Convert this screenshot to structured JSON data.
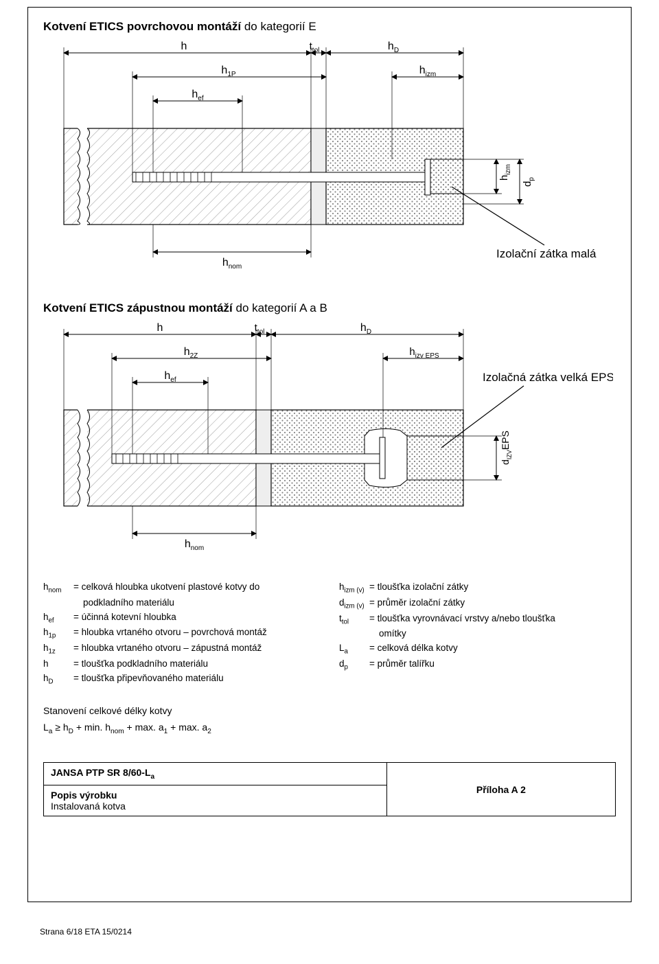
{
  "section1": {
    "title_bold": "Kotvení ETICS povrchovou montáží",
    "title_rest": " do kategorií E",
    "label_small": "Izolační zátka malá",
    "dims": {
      "h": "h",
      "ttol": "t",
      "ttol_sub": "tol",
      "hD": "h",
      "hD_sub": "D",
      "h1P": "h",
      "h1P_sub": "1P",
      "hizm": "h",
      "hizm_sub": "izm",
      "hef": "h",
      "hef_sub": "ef",
      "hnom": "h",
      "hnom_sub": "nom",
      "hizm_v": "h",
      "hizm_v_sub": "izm",
      "dp": "d",
      "dp_sub": "p"
    }
  },
  "section2": {
    "title_bold": "Kotvení ETICS zápustnou montáží",
    "title_rest": " do kategorií A a B",
    "label_big": "Izolačná zátka velká EPS",
    "dims": {
      "h": "h",
      "ttol": "t",
      "ttol_sub": "tol",
      "hD": "h",
      "hD_sub": "D",
      "h2Z": "h",
      "h2Z_sub": "2Z",
      "hizvEPS": "h",
      "hizvEPS_sub": "izv EPS",
      "hef": "h",
      "hef_sub": "ef",
      "hnom": "h",
      "hnom_sub": "nom",
      "dizvEPS": "d",
      "dizvEPS_sub": "IZV",
      "dizvEPS_sup": "EPS"
    }
  },
  "defs_left": [
    {
      "sym": "h",
      "sub": "nom",
      "txt": "= celková hloubka ukotvení plastové kotvy do",
      "cont": "podkladního materiálu"
    },
    {
      "sym": "h",
      "sub": "ef",
      "txt": "= účinná kotevní hloubka"
    },
    {
      "sym": "h",
      "sub": "1p",
      "txt": "= hloubka vrtaného otvoru – povrchová montáž"
    },
    {
      "sym": "h",
      "sub": "1z",
      "txt": "= hloubka vrtaného otvoru – zápustná montáž"
    },
    {
      "sym": "h",
      "sub": "",
      "txt": "= tloušťka podkladního materiálu"
    },
    {
      "sym": "h",
      "sub": "D",
      "txt": "= tloušťka připevňovaného materiálu"
    }
  ],
  "defs_right": [
    {
      "sym": "h",
      "sub": "izm (v)",
      "txt": "= tloušťka izolační zátky"
    },
    {
      "sym": "d",
      "sub": "izm (v)",
      "txt": "= průměr izolační zátky"
    },
    {
      "sym": "t",
      "sub": "tol",
      "txt": "= tloušťka vyrovnávací vrstvy a/nebo tloušťka",
      "cont": "omítky"
    },
    {
      "sym": "L",
      "sub": "a",
      "txt": "= celková délka kotvy"
    },
    {
      "sym": "d",
      "sub": "p",
      "txt": "= průměr talířku"
    }
  ],
  "calc": {
    "title": "Stanovení celkové délky kotvy",
    "formula_parts": {
      "La": "L",
      "La_sub": "a",
      "ge": " ≥ ",
      "hD": "h",
      "hD_sub": "D",
      "plus1": " + min. ",
      "hnom": "h",
      "hnom_sub": "nom",
      "plus2": "+ max. a",
      "a1_sub": "1",
      "plus3": " + max. a",
      "a2_sub": "2"
    }
  },
  "footer": {
    "product": "JANSA PTP SR 8/60-L",
    "product_sub": "a",
    "desc_bold": "Popis výrobku",
    "desc_line": "Instalovaná kotva",
    "annex": "Příloha A 2"
  },
  "page_footer": "Strana 6/18 ETA 15/0214",
  "colors": {
    "hatch": "#9e9e9e",
    "wall_fill": "#f2f2f2",
    "insulation_fill": "#f7f7f7",
    "black": "#000000"
  }
}
